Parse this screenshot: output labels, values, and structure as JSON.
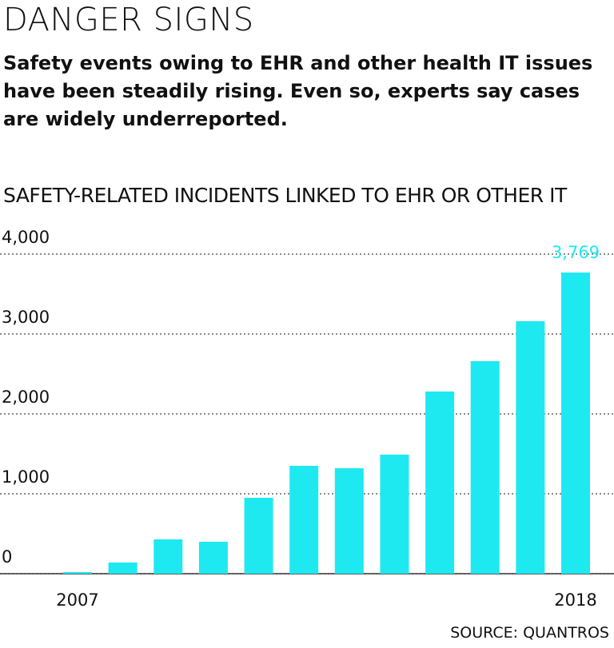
{
  "chart_data": {
    "type": "bar",
    "title": "DANGER SIGNS",
    "subtitle": "Safety events owing to EHR and other health IT issues have been steadily rising. Even so, experts say cases are widely underreported.",
    "y_label": "SAFETY-RELATED INCIDENTS LINKED TO EHR OR OTHER IT",
    "source": "SOURCE: QUANTROS",
    "categories": [
      "2007",
      null,
      null,
      null,
      null,
      null,
      null,
      null,
      null,
      null,
      null,
      "2018"
    ],
    "values": [
      20,
      140,
      430,
      400,
      950,
      1350,
      1320,
      1490,
      2280,
      2660,
      3160,
      3769
    ],
    "value_labels": [
      null,
      null,
      null,
      null,
      null,
      null,
      null,
      null,
      null,
      null,
      null,
      "3,769"
    ],
    "color": "#1ee9f1",
    "ylim": [
      0,
      4000
    ],
    "yticks": [
      0,
      {
        "value": 1000,
        "label": "1,000"
      },
      {
        "value": 2000,
        "label": "2,000"
      },
      {
        "value": 3000,
        "label": "3,000"
      },
      {
        "value": 4000,
        "label": "4,000"
      }
    ],
    "grid": true
  }
}
